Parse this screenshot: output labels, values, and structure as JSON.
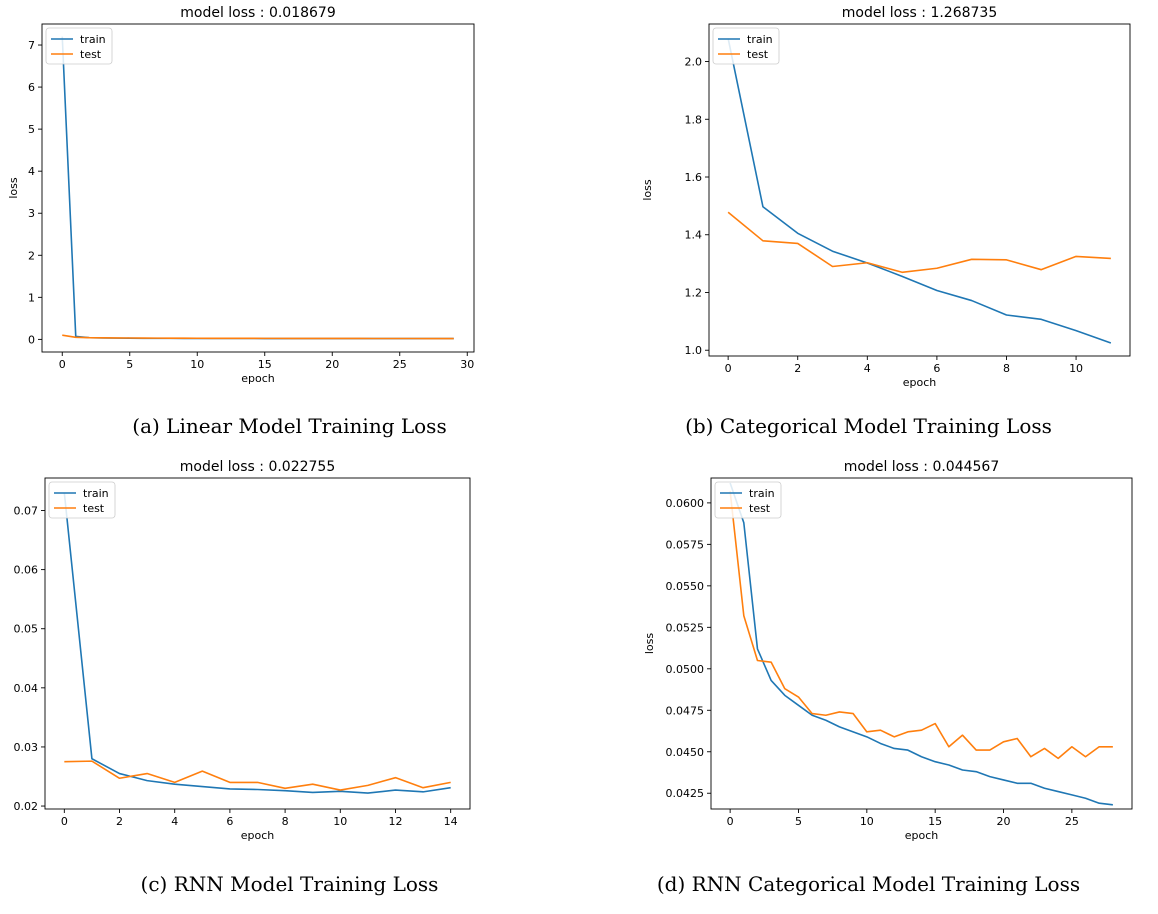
{
  "colors": {
    "train": "#1f77b4",
    "test": "#ff7f0e"
  },
  "chart_data": [
    {
      "type": "line",
      "title": "model loss : 0.018679",
      "xlabel": "epoch",
      "ylabel": "loss",
      "xlim": [
        -1.5,
        30.5
      ],
      "ylim": [
        -0.3,
        7.5
      ],
      "xticks": [
        0,
        5,
        10,
        15,
        20,
        25,
        30
      ],
      "yticks": [
        0,
        1,
        2,
        3,
        4,
        5,
        6,
        7
      ],
      "ytick_labels": [
        "0",
        "1",
        "2",
        "3",
        "4",
        "5",
        "6",
        "7"
      ],
      "legend": "upper left",
      "caption": "(a) Linear Model Training Loss",
      "series": [
        {
          "name": "train",
          "x": [
            0,
            1,
            2,
            3,
            4,
            5,
            6,
            7,
            8,
            9,
            10,
            11,
            12,
            13,
            14,
            15,
            16,
            17,
            18,
            19,
            20,
            21,
            22,
            23,
            24,
            25,
            26,
            27,
            28,
            29
          ],
          "values": [
            7.2,
            0.07,
            0.04,
            0.035,
            0.03,
            0.028,
            0.026,
            0.025,
            0.024,
            0.023,
            0.022,
            0.022,
            0.021,
            0.021,
            0.021,
            0.02,
            0.02,
            0.02,
            0.02,
            0.02,
            0.019,
            0.019,
            0.019,
            0.019,
            0.019,
            0.019,
            0.019,
            0.019,
            0.019,
            0.019
          ]
        },
        {
          "name": "test",
          "x": [
            0,
            1,
            2,
            3,
            4,
            5,
            6,
            7,
            8,
            9,
            10,
            11,
            12,
            13,
            14,
            15,
            16,
            17,
            18,
            19,
            20,
            21,
            22,
            23,
            24,
            25,
            26,
            27,
            28,
            29
          ],
          "values": [
            0.1,
            0.05,
            0.04,
            0.038,
            0.035,
            0.033,
            0.031,
            0.03,
            0.029,
            0.028,
            0.027,
            0.026,
            0.026,
            0.025,
            0.025,
            0.024,
            0.024,
            0.023,
            0.023,
            0.023,
            0.022,
            0.022,
            0.022,
            0.021,
            0.021,
            0.021,
            0.021,
            0.02,
            0.02,
            0.02
          ]
        }
      ]
    },
    {
      "type": "line",
      "title": "model loss : 1.268735",
      "xlabel": "epoch",
      "ylabel": "loss",
      "xlim": [
        -0.55,
        11.55
      ],
      "ylim": [
        0.98,
        2.13
      ],
      "xticks": [
        0,
        2,
        4,
        6,
        8,
        10
      ],
      "yticks": [
        1.0,
        1.2,
        1.4,
        1.6,
        1.8,
        2.0
      ],
      "ytick_labels": [
        "1.0",
        "1.2",
        "1.4",
        "1.6",
        "1.8",
        "2.0"
      ],
      "legend": "upper left",
      "caption": "(b) Categorical Model Training Loss",
      "series": [
        {
          "name": "train",
          "x": [
            0,
            1,
            2,
            3,
            4,
            5,
            6,
            7,
            8,
            9,
            10,
            11
          ],
          "values": [
            2.08,
            1.497,
            1.405,
            1.343,
            1.302,
            1.256,
            1.207,
            1.172,
            1.122,
            1.107,
            1.068,
            1.025
          ]
        },
        {
          "name": "test",
          "x": [
            0,
            1,
            2,
            3,
            4,
            5,
            6,
            7,
            8,
            9,
            10,
            11
          ],
          "values": [
            1.478,
            1.379,
            1.37,
            1.29,
            1.303,
            1.27,
            1.284,
            1.315,
            1.313,
            1.279,
            1.325,
            1.318
          ]
        }
      ]
    },
    {
      "type": "line",
      "title": "model loss : 0.022755",
      "xlabel": "epoch",
      "ylabel": "",
      "xlim": [
        -0.7,
        14.7
      ],
      "ylim": [
        0.0195,
        0.0755
      ],
      "xticks": [
        0,
        2,
        4,
        6,
        8,
        10,
        12,
        14
      ],
      "yticks": [
        0.02,
        0.03,
        0.04,
        0.05,
        0.06,
        0.07
      ],
      "ytick_labels": [
        "0.02",
        "0.03",
        "0.04",
        "0.05",
        "0.06",
        "0.07"
      ],
      "legend": "upper left",
      "caption": "(c) RNN Model Training Loss",
      "series": [
        {
          "name": "train",
          "x": [
            0,
            1,
            2,
            3,
            4,
            5,
            6,
            7,
            8,
            9,
            10,
            11,
            12,
            13,
            14
          ],
          "values": [
            0.073,
            0.028,
            0.0255,
            0.0243,
            0.0237,
            0.0233,
            0.0229,
            0.0228,
            0.0226,
            0.0223,
            0.0225,
            0.0222,
            0.0227,
            0.0224,
            0.0231
          ]
        },
        {
          "name": "test",
          "x": [
            0,
            1,
            2,
            3,
            4,
            5,
            6,
            7,
            8,
            9,
            10,
            11,
            12,
            13,
            14
          ],
          "values": [
            0.0275,
            0.0276,
            0.0247,
            0.0255,
            0.024,
            0.0259,
            0.024,
            0.024,
            0.023,
            0.0237,
            0.0227,
            0.0235,
            0.0248,
            0.0231,
            0.024
          ]
        }
      ]
    },
    {
      "type": "line",
      "title": "model loss : 0.044567",
      "xlabel": "epoch",
      "ylabel": "loss",
      "xlim": [
        -1.4,
        29.4
      ],
      "ylim": [
        0.04155,
        0.0615
      ],
      "xticks": [
        0,
        5,
        10,
        15,
        20,
        25
      ],
      "yticks": [
        0.0425,
        0.045,
        0.0475,
        0.05,
        0.0525,
        0.055,
        0.0575,
        0.06
      ],
      "ytick_labels": [
        "0.0425",
        "0.0450",
        "0.0475",
        "0.0500",
        "0.0525",
        "0.0550",
        "0.0575",
        "0.0600"
      ],
      "legend": "upper left",
      "caption": "(d) RNN Categorical Model Training Loss",
      "series": [
        {
          "name": "train",
          "x": [
            0,
            1,
            2,
            3,
            4,
            5,
            6,
            7,
            8,
            9,
            10,
            11,
            12,
            13,
            14,
            15,
            16,
            17,
            18,
            19,
            20,
            21,
            22,
            23,
            24,
            25,
            26,
            27,
            28
          ],
          "values": [
            0.0612,
            0.0588,
            0.0512,
            0.0493,
            0.0484,
            0.0478,
            0.0472,
            0.0469,
            0.0465,
            0.0462,
            0.0459,
            0.0455,
            0.0452,
            0.0451,
            0.0447,
            0.0444,
            0.0442,
            0.0439,
            0.0438,
            0.0435,
            0.0433,
            0.0431,
            0.0431,
            0.0428,
            0.0426,
            0.0424,
            0.0422,
            0.0419,
            0.0418
          ]
        },
        {
          "name": "test",
          "x": [
            0,
            1,
            2,
            3,
            4,
            5,
            6,
            7,
            8,
            9,
            10,
            11,
            12,
            13,
            14,
            15,
            16,
            17,
            18,
            19,
            20,
            21,
            22,
            23,
            24,
            25,
            26,
            27,
            28
          ],
          "values": [
            0.0607,
            0.0532,
            0.0505,
            0.0504,
            0.0488,
            0.0483,
            0.0473,
            0.0472,
            0.0474,
            0.0473,
            0.0462,
            0.0463,
            0.0459,
            0.0462,
            0.0463,
            0.0467,
            0.0453,
            0.046,
            0.0451,
            0.0451,
            0.0456,
            0.0458,
            0.0447,
            0.0452,
            0.0446,
            0.0453,
            0.0447,
            0.0453,
            0.0453
          ]
        }
      ]
    }
  ]
}
